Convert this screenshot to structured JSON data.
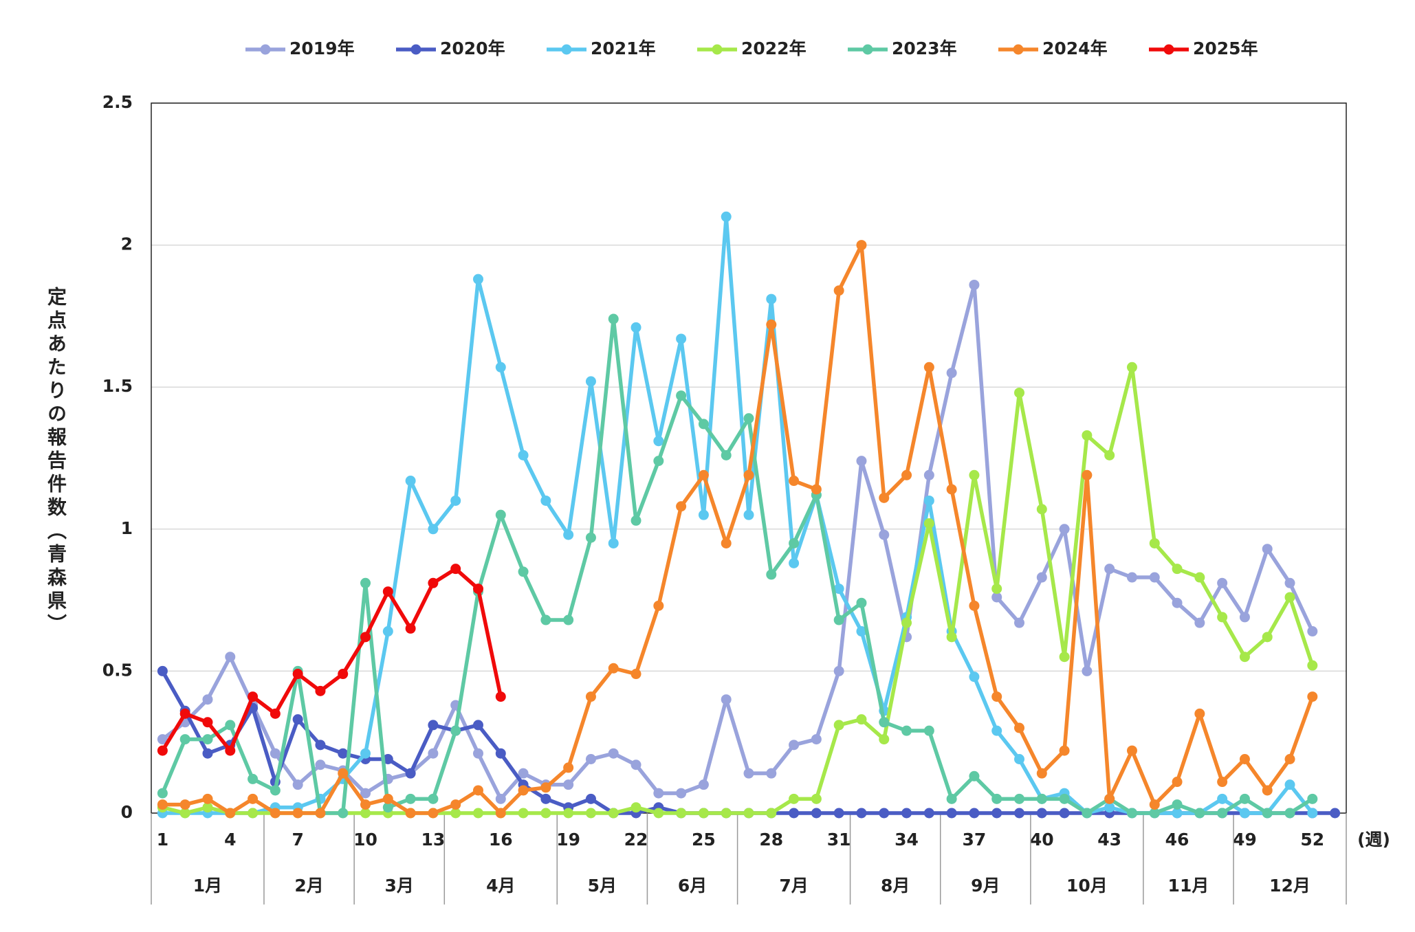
{
  "chart_data": {
    "type": "line",
    "y_label": "定点あたりの報告件数（青森県）",
    "x_unit": "(週)",
    "x": [
      1,
      2,
      3,
      4,
      5,
      6,
      7,
      8,
      9,
      10,
      11,
      12,
      13,
      14,
      15,
      16,
      17,
      18,
      19,
      20,
      21,
      22,
      23,
      24,
      25,
      26,
      27,
      28,
      29,
      30,
      31,
      32,
      33,
      34,
      35,
      36,
      37,
      38,
      39,
      40,
      41,
      42,
      43,
      44,
      45,
      46,
      47,
      48,
      49,
      50,
      51,
      52,
      53
    ],
    "xlim": [
      0.5,
      53.5
    ],
    "xticks": [
      1,
      4,
      7,
      10,
      13,
      16,
      19,
      22,
      25,
      28,
      31,
      34,
      37,
      40,
      43,
      46,
      49,
      52
    ],
    "months": [
      {
        "label": "1月",
        "weeks": 5
      },
      {
        "label": "2月",
        "weeks": 4
      },
      {
        "label": "3月",
        "weeks": 4
      },
      {
        "label": "4月",
        "weeks": 5
      },
      {
        "label": "5月",
        "weeks": 4
      },
      {
        "label": "6月",
        "weeks": 4
      },
      {
        "label": "7月",
        "weeks": 5
      },
      {
        "label": "8月",
        "weeks": 4
      },
      {
        "label": "9月",
        "weeks": 4
      },
      {
        "label": "10月",
        "weeks": 5
      },
      {
        "label": "11月",
        "weeks": 4
      },
      {
        "label": "12月",
        "weeks": 5
      }
    ],
    "ylim": [
      0,
      2.5
    ],
    "yticks": [
      0,
      0.5,
      1,
      1.5,
      2,
      2.5
    ],
    "grid": true,
    "legend": "top",
    "series": [
      {
        "name": "2019年",
        "color": "#99a3dc",
        "values": [
          0.26,
          0.32,
          0.4,
          0.55,
          0.38,
          0.21,
          0.1,
          0.17,
          0.15,
          0.07,
          0.12,
          0.14,
          0.21,
          0.38,
          0.21,
          0.05,
          0.14,
          0.1,
          0.1,
          0.19,
          0.21,
          0.17,
          0.07,
          0.07,
          0.1,
          0.4,
          0.14,
          0.14,
          0.24,
          0.26,
          0.5,
          1.24,
          0.98,
          0.62,
          1.19,
          1.55,
          1.86,
          0.76,
          0.67,
          0.83,
          1.0,
          0.5,
          0.86,
          0.83,
          0.83,
          0.74,
          0.67,
          0.81,
          0.69,
          0.93,
          0.81,
          0.64,
          null
        ]
      },
      {
        "name": "2020年",
        "color": "#4a5cc4",
        "values": [
          0.5,
          0.36,
          0.21,
          0.24,
          0.37,
          0.11,
          0.33,
          0.24,
          0.21,
          0.19,
          0.19,
          0.14,
          0.31,
          0.29,
          0.31,
          0.21,
          0.1,
          0.05,
          0.02,
          0.05,
          0,
          0,
          0.02,
          0,
          0,
          0,
          0,
          0,
          0,
          0,
          0,
          0,
          0,
          0,
          0,
          0,
          0,
          0,
          0,
          0,
          0,
          0,
          0,
          0,
          0,
          0,
          0,
          0,
          0,
          0,
          0,
          0,
          0
        ]
      },
      {
        "name": "2021年",
        "color": "#5bc8f0",
        "values": [
          0,
          0,
          0,
          0,
          0,
          0.02,
          0.02,
          0.05,
          0.12,
          0.21,
          0.64,
          1.17,
          1.0,
          1.1,
          1.88,
          1.57,
          1.26,
          1.1,
          0.98,
          1.52,
          0.95,
          1.71,
          1.31,
          1.67,
          1.05,
          2.1,
          1.05,
          1.81,
          0.88,
          1.12,
          0.79,
          0.64,
          0.36,
          0.69,
          1.1,
          0.64,
          0.48,
          0.29,
          0.19,
          0.05,
          0.07,
          0,
          0.02,
          0,
          0,
          0,
          0,
          0.05,
          0,
          0,
          0.1,
          0,
          null
        ]
      },
      {
        "name": "2022年",
        "color": "#a6e84a",
        "values": [
          0.02,
          0,
          0.02,
          0,
          0,
          0,
          0,
          0,
          0,
          0,
          0,
          0,
          0,
          0,
          0,
          0,
          0,
          0,
          0,
          0,
          0,
          0.02,
          0,
          0,
          0,
          0,
          0,
          0,
          0.05,
          0.05,
          0.31,
          0.33,
          0.26,
          0.67,
          1.02,
          0.62,
          1.19,
          0.79,
          1.48,
          1.07,
          0.55,
          1.33,
          1.26,
          1.57,
          0.95,
          0.86,
          0.83,
          0.69,
          0.55,
          0.62,
          0.76,
          0.52,
          null
        ]
      },
      {
        "name": "2023年",
        "color": "#5ec9a4",
        "values": [
          0.07,
          0.26,
          0.26,
          0.31,
          0.12,
          0.08,
          0.5,
          0,
          0,
          0.81,
          0.02,
          0.05,
          0.05,
          0.29,
          0.78,
          1.05,
          0.85,
          0.68,
          0.68,
          0.97,
          1.74,
          1.03,
          1.24,
          1.47,
          1.37,
          1.26,
          1.39,
          0.84,
          0.95,
          1.12,
          0.68,
          0.74,
          0.32,
          0.29,
          0.29,
          0.05,
          0.13,
          0.05,
          0.05,
          0.05,
          0.05,
          0,
          0.05,
          0,
          0,
          0.03,
          0,
          0,
          0.05,
          0,
          0,
          0.05,
          null
        ]
      },
      {
        "name": "2024年",
        "color": "#f5862b",
        "values": [
          0.03,
          0.03,
          0.05,
          0,
          0.05,
          0,
          0,
          0,
          0.14,
          0.03,
          0.05,
          0,
          0,
          0.03,
          0.08,
          0,
          0.08,
          0.09,
          0.16,
          0.41,
          0.51,
          0.49,
          0.73,
          1.08,
          1.19,
          0.95,
          1.19,
          1.72,
          1.17,
          1.14,
          1.84,
          2.0,
          1.11,
          1.19,
          1.57,
          1.14,
          0.73,
          0.41,
          0.3,
          0.14,
          0.22,
          1.19,
          0.05,
          0.22,
          0.03,
          0.11,
          0.35,
          0.11,
          0.19,
          0.08,
          0.19,
          0.41,
          null
        ]
      },
      {
        "name": "2025年",
        "color": "#f00a0a",
        "values": [
          0.22,
          0.35,
          0.32,
          0.22,
          0.41,
          0.35,
          0.49,
          0.43,
          0.49,
          0.62,
          0.78,
          0.65,
          0.81,
          0.86,
          0.79,
          0.41,
          null,
          null,
          null,
          null,
          null,
          null,
          null,
          null,
          null,
          null,
          null,
          null,
          null,
          null,
          null,
          null,
          null,
          null,
          null,
          null,
          null,
          null,
          null,
          null,
          null,
          null,
          null,
          null,
          null,
          null,
          null,
          null,
          null,
          null,
          null,
          null,
          null
        ]
      }
    ]
  }
}
